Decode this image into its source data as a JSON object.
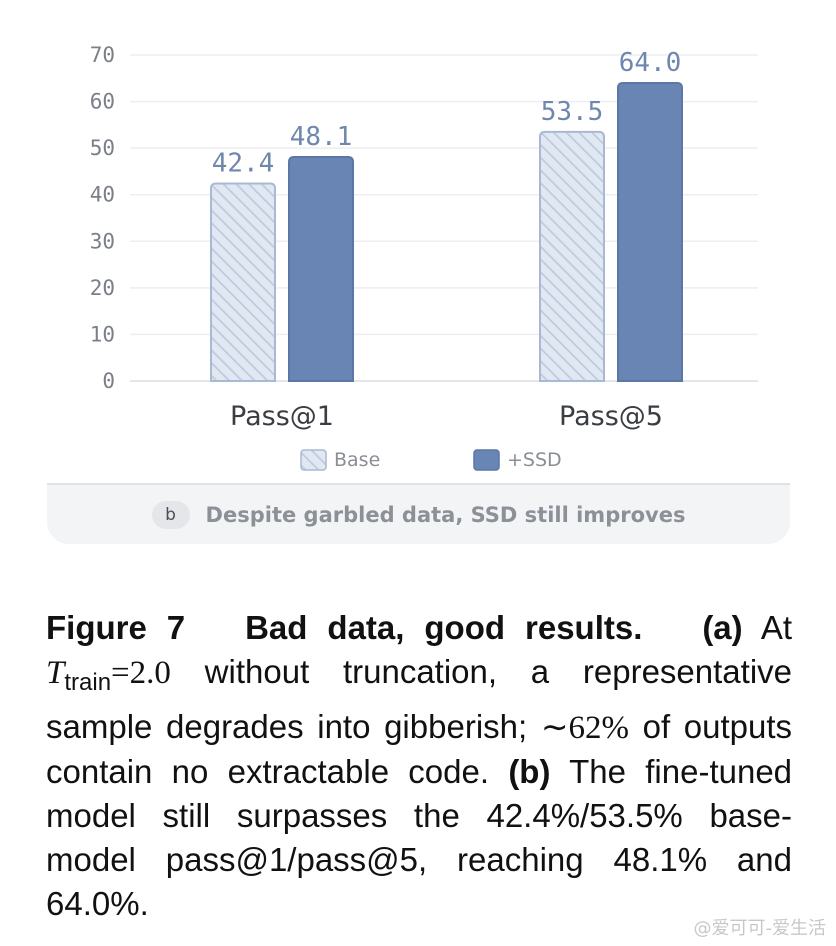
{
  "chart_data": {
    "type": "bar",
    "categories": [
      "Pass@1",
      "Pass@5"
    ],
    "series": [
      {
        "name": "Base",
        "values": [
          42.4,
          53.5
        ],
        "color": "#dfe5f0",
        "stroke": "#a9b9d4",
        "pattern": "hatched"
      },
      {
        "name": "+SSD",
        "values": [
          48.1,
          64.0
        ],
        "color": "#6885b4",
        "stroke": "#5b77a6",
        "pattern": "solid"
      }
    ],
    "value_labels": [
      [
        "42.4",
        "53.5"
      ],
      [
        "48.1",
        "64.0"
      ]
    ],
    "yticks": [
      "0",
      "10",
      "20",
      "30",
      "40",
      "50",
      "60",
      "70"
    ],
    "ylim": [
      0,
      70
    ],
    "grid": true,
    "legend_position": "bottom-center",
    "title": "",
    "xlabel": "",
    "ylabel": ""
  },
  "panel": {
    "badge": "b",
    "caption": "Despite garbled data, SSD still improves"
  },
  "figure_caption": {
    "label": "Figure 7",
    "title": "Bad data, good results.",
    "part_a": "(a)",
    "text_a1": "At",
    "t_symbol": "T",
    "t_sub": "train",
    "t_value": "=2.0",
    "text_a2": "without truncation, a representative sample degrades into gibberish;",
    "approx": "∼62%",
    "text_a3": "of outputs contain no extractable code.",
    "part_b": "(b)",
    "text_b": "The fine-tuned model still surpasses the 42.4%/53.5% base-model pass@1/pass@5, reaching 48.1% and 64.0%."
  },
  "watermark": "@爱可可-爱生活"
}
